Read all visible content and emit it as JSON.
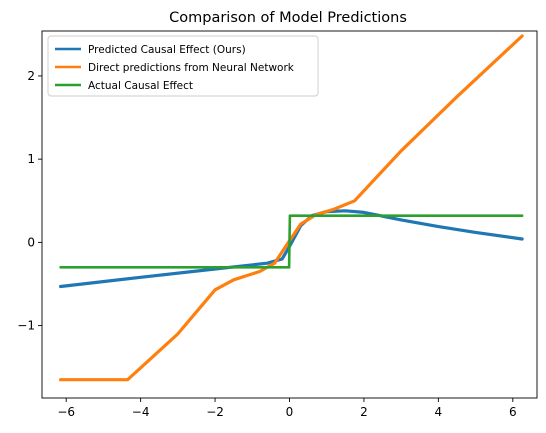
{
  "chart_data": {
    "type": "line",
    "title": "Comparison of Model Predictions",
    "xlabel": "",
    "ylabel": "",
    "xlim": [
      -6.65,
      6.65
    ],
    "ylim": [
      -1.87,
      2.54
    ],
    "xticks": [
      -6,
      -4,
      -2,
      0,
      2,
      4,
      6
    ],
    "yticks": [
      -1,
      0,
      1,
      2
    ],
    "grid": false,
    "legend_position": "top-left",
    "series": [
      {
        "name": "Predicted Causal Effect (Ours)",
        "color": "#1f77b4",
        "x": [
          -6.15,
          -4.0,
          -2.0,
          -0.6,
          -0.2,
          0.0,
          0.3,
          0.6,
          1.0,
          1.5,
          2.0,
          3.0,
          4.0,
          5.0,
          6.25
        ],
        "y": [
          -0.53,
          -0.42,
          -0.32,
          -0.25,
          -0.2,
          -0.05,
          0.2,
          0.32,
          0.37,
          0.38,
          0.36,
          0.27,
          0.19,
          0.12,
          0.04
        ]
      },
      {
        "name": "Direct predictions from Neural Network",
        "color": "#ff7f0e",
        "x": [
          -6.15,
          -4.35,
          -3.0,
          -2.0,
          -1.5,
          -0.8,
          -0.4,
          0.0,
          0.3,
          0.7,
          1.2,
          1.75,
          3.0,
          4.5,
          6.25
        ],
        "y": [
          -1.65,
          -1.65,
          -1.1,
          -0.57,
          -0.45,
          -0.35,
          -0.25,
          0.02,
          0.22,
          0.33,
          0.4,
          0.5,
          1.1,
          1.75,
          2.48
        ]
      },
      {
        "name": "Actual Causal Effect",
        "color": "#2ca02c",
        "x": [
          -6.15,
          -0.01,
          0.01,
          6.25
        ],
        "y": [
          -0.3,
          -0.3,
          0.32,
          0.32
        ]
      }
    ]
  }
}
